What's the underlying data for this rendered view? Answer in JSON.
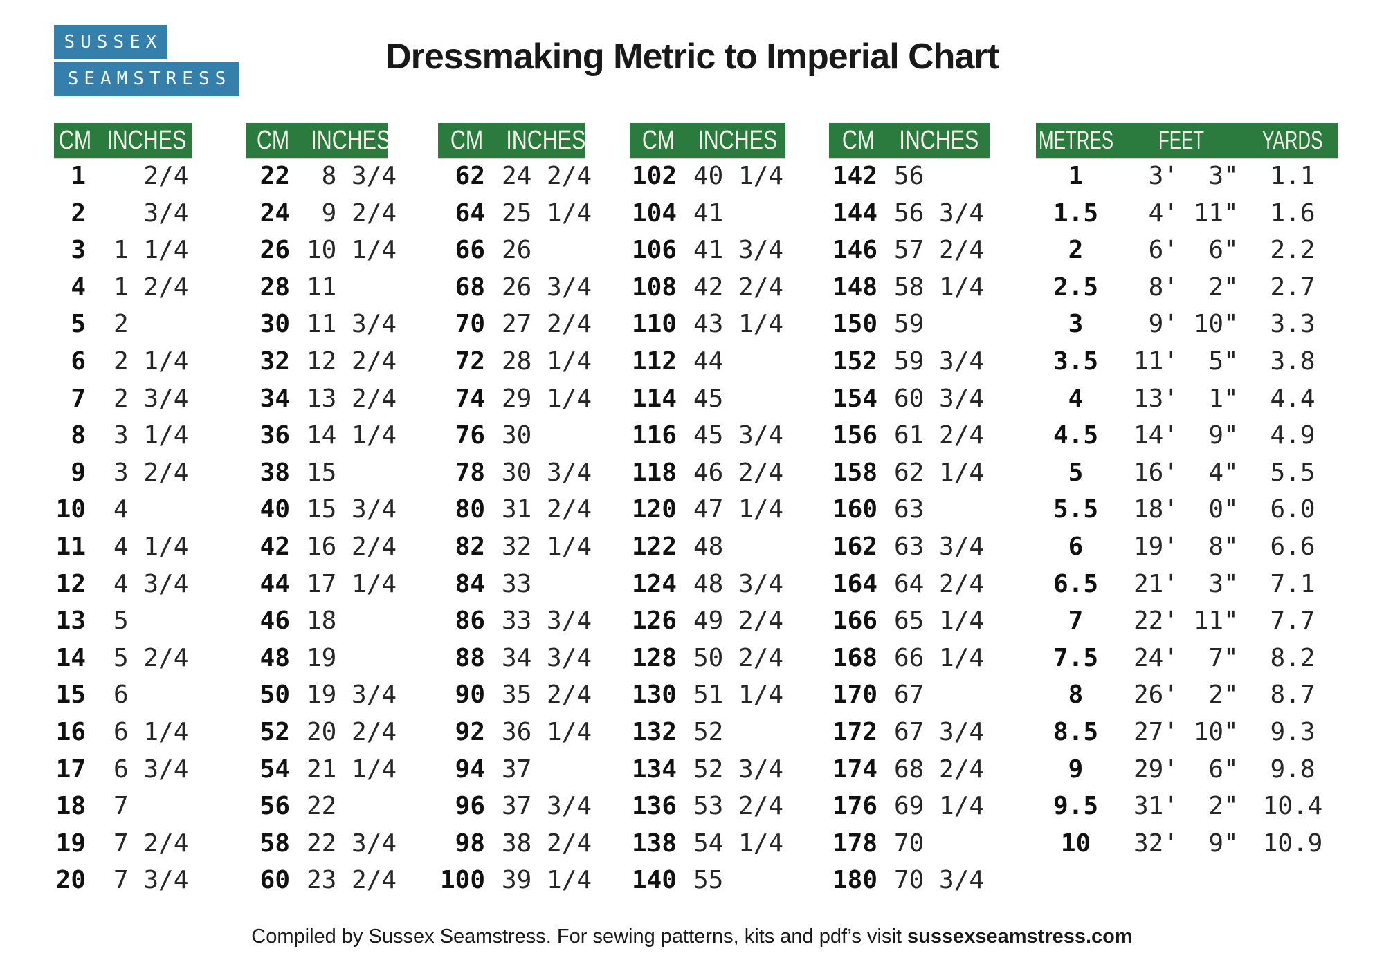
{
  "logo": {
    "line1": "SUSSEX",
    "line2": "SEAMSTRESS"
  },
  "title": "Dressmaking Metric to Imperial Chart",
  "colors": {
    "header_green": "#2b7a3e",
    "logo_blue": "#3580ab"
  },
  "cm_tables": [
    {
      "headers": [
        "CM",
        "INCHES"
      ],
      "rows": [
        [
          "1",
          "  2/4"
        ],
        [
          "2",
          "  3/4"
        ],
        [
          "3",
          "1 1/4"
        ],
        [
          "4",
          "1 2/4"
        ],
        [
          "5",
          "2"
        ],
        [
          "6",
          "2 1/4"
        ],
        [
          "7",
          "2 3/4"
        ],
        [
          "8",
          "3 1/4"
        ],
        [
          "9",
          "3 2/4"
        ],
        [
          "10",
          "4"
        ],
        [
          "11",
          "4 1/4"
        ],
        [
          "12",
          "4 3/4"
        ],
        [
          "13",
          "5"
        ],
        [
          "14",
          "5 2/4"
        ],
        [
          "15",
          "6"
        ],
        [
          "16",
          "6 1/4"
        ],
        [
          "17",
          "6 3/4"
        ],
        [
          "18",
          "7"
        ],
        [
          "19",
          "7 2/4"
        ],
        [
          "20",
          "7 3/4"
        ]
      ]
    },
    {
      "headers": [
        "CM",
        "INCHES"
      ],
      "rows": [
        [
          "22",
          " 8 3/4"
        ],
        [
          "24",
          " 9 2/4"
        ],
        [
          "26",
          "10 1/4"
        ],
        [
          "28",
          "11"
        ],
        [
          "30",
          "11 3/4"
        ],
        [
          "32",
          "12 2/4"
        ],
        [
          "34",
          "13 2/4"
        ],
        [
          "36",
          "14 1/4"
        ],
        [
          "38",
          "15"
        ],
        [
          "40",
          "15 3/4"
        ],
        [
          "42",
          "16 2/4"
        ],
        [
          "44",
          "17 1/4"
        ],
        [
          "46",
          "18"
        ],
        [
          "48",
          "19"
        ],
        [
          "50",
          "19 3/4"
        ],
        [
          "52",
          "20 2/4"
        ],
        [
          "54",
          "21 1/4"
        ],
        [
          "56",
          "22"
        ],
        [
          "58",
          "22 3/4"
        ],
        [
          "60",
          "23 2/4"
        ]
      ]
    },
    {
      "headers": [
        "CM",
        "INCHES"
      ],
      "rows": [
        [
          "62",
          "24 2/4"
        ],
        [
          "64",
          "25 1/4"
        ],
        [
          "66",
          "26"
        ],
        [
          "68",
          "26 3/4"
        ],
        [
          "70",
          "27 2/4"
        ],
        [
          "72",
          "28 1/4"
        ],
        [
          "74",
          "29 1/4"
        ],
        [
          "76",
          "30"
        ],
        [
          "78",
          "30 3/4"
        ],
        [
          "80",
          "31 2/4"
        ],
        [
          "82",
          "32 1/4"
        ],
        [
          "84",
          "33"
        ],
        [
          "86",
          "33 3/4"
        ],
        [
          "88",
          "34 3/4"
        ],
        [
          "90",
          "35 2/4"
        ],
        [
          "92",
          "36 1/4"
        ],
        [
          "94",
          "37"
        ],
        [
          "96",
          "37 3/4"
        ],
        [
          "98",
          "38 2/4"
        ],
        [
          "100",
          "39 1/4"
        ]
      ]
    },
    {
      "headers": [
        "CM",
        "INCHES"
      ],
      "rows": [
        [
          "102",
          "40 1/4"
        ],
        [
          "104",
          "41"
        ],
        [
          "106",
          "41 3/4"
        ],
        [
          "108",
          "42 2/4"
        ],
        [
          "110",
          "43 1/4"
        ],
        [
          "112",
          "44"
        ],
        [
          "114",
          "45"
        ],
        [
          "116",
          "45 3/4"
        ],
        [
          "118",
          "46 2/4"
        ],
        [
          "120",
          "47 1/4"
        ],
        [
          "122",
          "48"
        ],
        [
          "124",
          "48 3/4"
        ],
        [
          "126",
          "49 2/4"
        ],
        [
          "128",
          "50 2/4"
        ],
        [
          "130",
          "51 1/4"
        ],
        [
          "132",
          "52"
        ],
        [
          "134",
          "52 3/4"
        ],
        [
          "136",
          "53 2/4"
        ],
        [
          "138",
          "54 1/4"
        ],
        [
          "140",
          "55"
        ]
      ]
    },
    {
      "headers": [
        "CM",
        "INCHES"
      ],
      "rows": [
        [
          "142",
          "56"
        ],
        [
          "144",
          "56 3/4"
        ],
        [
          "146",
          "57 2/4"
        ],
        [
          "148",
          "58 1/4"
        ],
        [
          "150",
          "59"
        ],
        [
          "152",
          "59 3/4"
        ],
        [
          "154",
          "60 3/4"
        ],
        [
          "156",
          "61 2/4"
        ],
        [
          "158",
          "62 1/4"
        ],
        [
          "160",
          "63"
        ],
        [
          "162",
          "63 3/4"
        ],
        [
          "164",
          "64 2/4"
        ],
        [
          "166",
          "65 1/4"
        ],
        [
          "168",
          "66 1/4"
        ],
        [
          "170",
          "67"
        ],
        [
          "172",
          "67 3/4"
        ],
        [
          "174",
          "68 2/4"
        ],
        [
          "176",
          "69 1/4"
        ],
        [
          "178",
          "70"
        ],
        [
          "180",
          "70 3/4"
        ]
      ]
    }
  ],
  "metres_table": {
    "headers": [
      "METRES",
      "FEET",
      "YARDS"
    ],
    "rows": [
      [
        "1",
        " 3'  3\"",
        "1.1"
      ],
      [
        "1.5",
        " 4' 11\"",
        "1.6"
      ],
      [
        "2",
        " 6'  6\"",
        "2.2"
      ],
      [
        "2.5",
        " 8'  2\"",
        "2.7"
      ],
      [
        "3",
        " 9' 10\"",
        "3.3"
      ],
      [
        "3.5",
        "11'  5\"",
        "3.8"
      ],
      [
        "4",
        "13'  1\"",
        "4.4"
      ],
      [
        "4.5",
        "14'  9\"",
        "4.9"
      ],
      [
        "5",
        "16'  4\"",
        "5.5"
      ],
      [
        "5.5",
        "18'  0\"",
        "6.0"
      ],
      [
        "6",
        "19'  8\"",
        "6.6"
      ],
      [
        "6.5",
        "21'  3\"",
        "7.1"
      ],
      [
        "7",
        "22' 11\"",
        "7.7"
      ],
      [
        "7.5",
        "24'  7\"",
        "8.2"
      ],
      [
        "8",
        "26'  2\"",
        "8.7"
      ],
      [
        "8.5",
        "27' 10\"",
        "9.3"
      ],
      [
        "9",
        "29'  6\"",
        "9.8"
      ],
      [
        "9.5",
        "31'  2\"",
        "10.4"
      ],
      [
        "10",
        "32'  9\"",
        "10.9"
      ]
    ]
  },
  "footer": {
    "prefix": "Compiled by Sussex Seamstress.  For sewing patterns, kits and pdf’s visit ",
    "site": "sussexseamstress.com"
  }
}
